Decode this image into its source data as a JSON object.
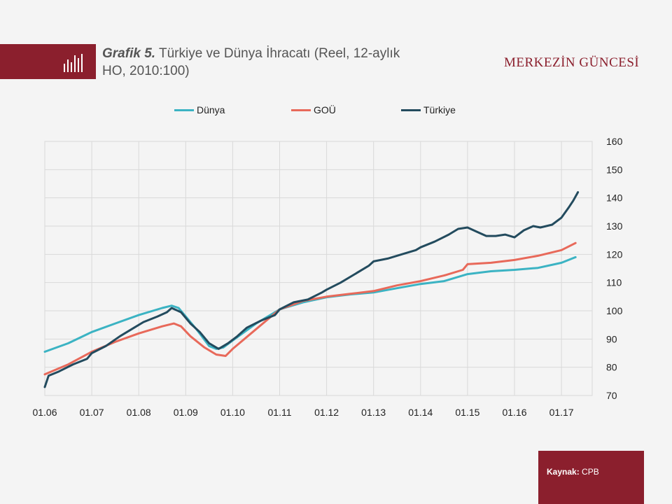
{
  "header": {
    "title_bold": "Grafik 5.",
    "title_rest": " Türkiye  ve Dünya İhracatı (Reel, 12-aylık HO, 2010:100)",
    "brand": "MERKEZİN GÜNCESİ",
    "icon": "bar-chart-icon"
  },
  "footer": {
    "source_label": "Kaynak:",
    "source_value": " CPB"
  },
  "colors": {
    "brand": "#8b1f2d",
    "dunya": "#3bb3c3",
    "gou": "#e8695a",
    "turkiye": "#234b5e",
    "grid": "#d9d9d9"
  },
  "chart_data": {
    "type": "line",
    "title": "",
    "xlabel": "",
    "ylabel": "",
    "x_ticks": [
      "01.06",
      "01.07",
      "01.08",
      "01.09",
      "01.10",
      "01.11",
      "01.12",
      "01.13",
      "01.14",
      "01.15",
      "01.16",
      "01.17"
    ],
    "x_range": [
      2006.0,
      2017.35
    ],
    "ylim": [
      70,
      160
    ],
    "y_ticks": [
      70,
      80,
      90,
      100,
      110,
      120,
      130,
      140,
      150,
      160
    ],
    "y_axis_side": "right",
    "grid": true,
    "legend_position": "top",
    "series": [
      {
        "name": "Dünya",
        "color": "#3bb3c3",
        "points": [
          [
            2006.0,
            85.5
          ],
          [
            2006.5,
            88.5
          ],
          [
            2007.0,
            92.5
          ],
          [
            2007.5,
            95.5
          ],
          [
            2008.0,
            98.5
          ],
          [
            2008.5,
            101.0
          ],
          [
            2008.7,
            101.8
          ],
          [
            2008.85,
            101.0
          ],
          [
            2009.0,
            98.0
          ],
          [
            2009.25,
            93.0
          ],
          [
            2009.5,
            87.5
          ],
          [
            2009.65,
            86.5
          ],
          [
            2009.8,
            87.0
          ],
          [
            2010.0,
            89.5
          ],
          [
            2010.5,
            95.5
          ],
          [
            2011.0,
            100.5
          ],
          [
            2011.5,
            103.0
          ],
          [
            2012.0,
            104.8
          ],
          [
            2012.5,
            105.8
          ],
          [
            2013.0,
            106.5
          ],
          [
            2013.5,
            108.0
          ],
          [
            2014.0,
            109.5
          ],
          [
            2014.5,
            110.5
          ],
          [
            2015.0,
            113.0
          ],
          [
            2015.5,
            114.0
          ],
          [
            2016.0,
            114.5
          ],
          [
            2016.5,
            115.2
          ],
          [
            2017.0,
            117.0
          ],
          [
            2017.3,
            119.0
          ]
        ]
      },
      {
        "name": "GOÜ",
        "color": "#e8695a",
        "points": [
          [
            2006.0,
            77.5
          ],
          [
            2006.5,
            81.0
          ],
          [
            2007.0,
            85.5
          ],
          [
            2007.5,
            89.0
          ],
          [
            2008.0,
            92.0
          ],
          [
            2008.5,
            94.5
          ],
          [
            2008.75,
            95.5
          ],
          [
            2008.9,
            94.5
          ],
          [
            2009.1,
            91.0
          ],
          [
            2009.4,
            87.0
          ],
          [
            2009.65,
            84.5
          ],
          [
            2009.85,
            84.0
          ],
          [
            2010.0,
            86.5
          ],
          [
            2010.5,
            93.5
          ],
          [
            2011.0,
            100.5
          ],
          [
            2011.5,
            103.5
          ],
          [
            2012.0,
            105.0
          ],
          [
            2012.5,
            106.0
          ],
          [
            2013.0,
            107.0
          ],
          [
            2013.5,
            109.0
          ],
          [
            2014.0,
            110.5
          ],
          [
            2014.5,
            112.5
          ],
          [
            2014.9,
            114.5
          ],
          [
            2015.0,
            116.5
          ],
          [
            2015.5,
            117.0
          ],
          [
            2016.0,
            118.0
          ],
          [
            2016.5,
            119.5
          ],
          [
            2017.0,
            121.5
          ],
          [
            2017.3,
            124.0
          ]
        ]
      },
      {
        "name": "Türkiye",
        "color": "#234b5e",
        "points": [
          [
            2006.0,
            73.0
          ],
          [
            2006.08,
            77.0
          ],
          [
            2006.3,
            78.5
          ],
          [
            2006.6,
            81.0
          ],
          [
            2006.9,
            83.0
          ],
          [
            2007.0,
            85.0
          ],
          [
            2007.3,
            87.5
          ],
          [
            2007.6,
            91.0
          ],
          [
            2007.9,
            94.0
          ],
          [
            2008.1,
            96.0
          ],
          [
            2008.4,
            98.0
          ],
          [
            2008.6,
            99.5
          ],
          [
            2008.7,
            101.0
          ],
          [
            2008.9,
            99.5
          ],
          [
            2009.1,
            95.5
          ],
          [
            2009.3,
            92.5
          ],
          [
            2009.5,
            88.5
          ],
          [
            2009.7,
            86.5
          ],
          [
            2009.9,
            88.5
          ],
          [
            2010.1,
            91.0
          ],
          [
            2010.3,
            94.0
          ],
          [
            2010.6,
            96.5
          ],
          [
            2010.9,
            98.5
          ],
          [
            2011.0,
            100.5
          ],
          [
            2011.3,
            103.0
          ],
          [
            2011.6,
            104.0
          ],
          [
            2011.9,
            106.5
          ],
          [
            2012.0,
            107.5
          ],
          [
            2012.3,
            110.0
          ],
          [
            2012.6,
            113.0
          ],
          [
            2012.9,
            116.0
          ],
          [
            2013.0,
            117.5
          ],
          [
            2013.3,
            118.5
          ],
          [
            2013.6,
            120.0
          ],
          [
            2013.9,
            121.5
          ],
          [
            2014.0,
            122.5
          ],
          [
            2014.3,
            124.5
          ],
          [
            2014.6,
            127.0
          ],
          [
            2014.8,
            129.0
          ],
          [
            2015.0,
            129.5
          ],
          [
            2015.2,
            128.0
          ],
          [
            2015.4,
            126.5
          ],
          [
            2015.6,
            126.5
          ],
          [
            2015.8,
            127.0
          ],
          [
            2016.0,
            126.0
          ],
          [
            2016.2,
            128.5
          ],
          [
            2016.4,
            130.0
          ],
          [
            2016.55,
            129.5
          ],
          [
            2016.8,
            130.5
          ],
          [
            2017.0,
            133.0
          ],
          [
            2017.15,
            136.5
          ],
          [
            2017.25,
            139.0
          ],
          [
            2017.35,
            142.0
          ]
        ]
      }
    ]
  }
}
